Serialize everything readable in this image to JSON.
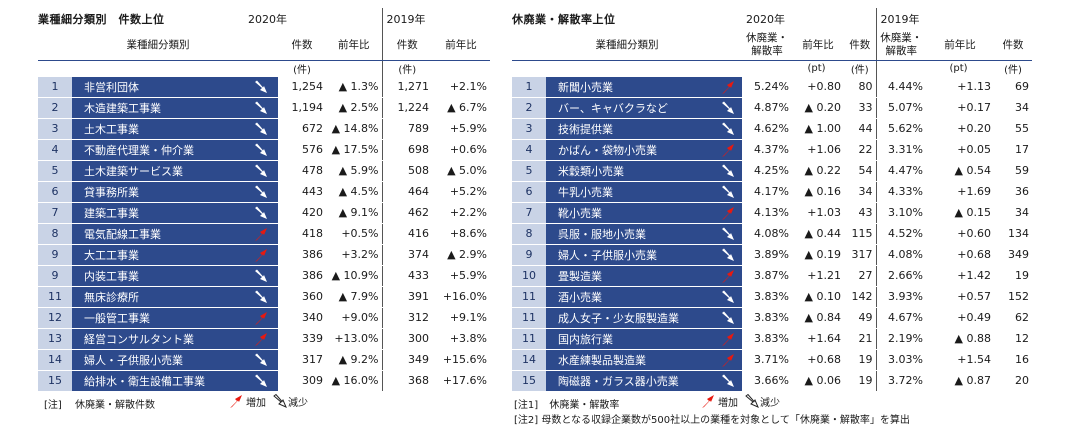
{
  "left": {
    "title": "業種細分類別　件数上位",
    "year_a": "2020年",
    "year_b": "2019年",
    "col_category": "業種細分類別",
    "col_count": "件数",
    "col_yoy": "前年比",
    "unit": "(件)",
    "rows": [
      {
        "rank": "1",
        "name": "非営利団体",
        "dir": "down",
        "c20": "1,254",
        "y20": "▲ 1.3%",
        "c19": "1,271",
        "y19": "+2.1%"
      },
      {
        "rank": "2",
        "name": "木造建築工事業",
        "dir": "down",
        "c20": "1,194",
        "y20": "▲ 2.5%",
        "c19": "1,224",
        "y19": "▲ 6.7%"
      },
      {
        "rank": "3",
        "name": "土木工事業",
        "dir": "down",
        "c20": "672",
        "y20": "▲ 14.8%",
        "c19": "789",
        "y19": "+5.9%"
      },
      {
        "rank": "4",
        "name": "不動産代理業・仲介業",
        "dir": "down",
        "c20": "576",
        "y20": "▲ 17.5%",
        "c19": "698",
        "y19": "+0.6%"
      },
      {
        "rank": "5",
        "name": "土木建築サービス業",
        "dir": "down",
        "c20": "478",
        "y20": "▲ 5.9%",
        "c19": "508",
        "y19": "▲ 5.0%"
      },
      {
        "rank": "6",
        "name": "貸事務所業",
        "dir": "down",
        "c20": "443",
        "y20": "▲ 4.5%",
        "c19": "464",
        "y19": "+5.2%"
      },
      {
        "rank": "7",
        "name": "建築工事業",
        "dir": "down",
        "c20": "420",
        "y20": "▲ 9.1%",
        "c19": "462",
        "y19": "+2.2%"
      },
      {
        "rank": "8",
        "name": "電気配線工事業",
        "dir": "up",
        "c20": "418",
        "y20": "+0.5%",
        "c19": "416",
        "y19": "+8.6%"
      },
      {
        "rank": "9",
        "name": "大工工事業",
        "dir": "up",
        "c20": "386",
        "y20": "+3.2%",
        "c19": "374",
        "y19": "▲ 2.9%"
      },
      {
        "rank": "9",
        "name": "内装工事業",
        "dir": "down",
        "c20": "386",
        "y20": "▲ 10.9%",
        "c19": "433",
        "y19": "+5.9%"
      },
      {
        "rank": "11",
        "name": "無床診療所",
        "dir": "down",
        "c20": "360",
        "y20": "▲ 7.9%",
        "c19": "391",
        "y19": "+16.0%"
      },
      {
        "rank": "12",
        "name": "一般管工事業",
        "dir": "up",
        "c20": "340",
        "y20": "+9.0%",
        "c19": "312",
        "y19": "+9.1%"
      },
      {
        "rank": "13",
        "name": "経営コンサルタント業",
        "dir": "up",
        "c20": "339",
        "y20": "+13.0%",
        "c19": "300",
        "y19": "+3.8%"
      },
      {
        "rank": "14",
        "name": "婦人・子供服小売業",
        "dir": "down",
        "c20": "317",
        "y20": "▲ 9.2%",
        "c19": "349",
        "y19": "+15.6%"
      },
      {
        "rank": "15",
        "name": "給排水・衛生設備工事業",
        "dir": "down",
        "c20": "309",
        "y20": "▲ 16.0%",
        "c19": "368",
        "y19": "+17.6%"
      }
    ],
    "note_tag": "[注]",
    "note_text": "休廃業・解散件数",
    "legend_up": "増加",
    "legend_down": "減少"
  },
  "right": {
    "title": "休廃業・解散率上位",
    "year_a": "2020年",
    "year_b": "2019年",
    "col_category": "業種細分類別",
    "col_rate": "休廃業・解散率",
    "col_yoy": "前年比",
    "col_count": "件数",
    "unit_pt": "(pt)",
    "unit_count": "(件)",
    "rows": [
      {
        "rank": "1",
        "name": "新聞小売業",
        "dir": "up",
        "r20": "5.24%",
        "d20": "+0.80",
        "c20": "80",
        "r19": "4.44%",
        "d19": "+1.13",
        "c19": "69"
      },
      {
        "rank": "2",
        "name": "バー、キャバクラなど",
        "dir": "down",
        "r20": "4.87%",
        "d20": "▲ 0.20",
        "c20": "33",
        "r19": "5.07%",
        "d19": "+0.17",
        "c19": "34"
      },
      {
        "rank": "3",
        "name": "技術提供業",
        "dir": "down",
        "r20": "4.62%",
        "d20": "▲ 1.00",
        "c20": "44",
        "r19": "5.62%",
        "d19": "+0.20",
        "c19": "55"
      },
      {
        "rank": "4",
        "name": "かばん・袋物小売業",
        "dir": "up",
        "r20": "4.37%",
        "d20": "+1.06",
        "c20": "22",
        "r19": "3.31%",
        "d19": "+0.05",
        "c19": "17"
      },
      {
        "rank": "5",
        "name": "米穀類小売業",
        "dir": "down",
        "r20": "4.25%",
        "d20": "▲ 0.22",
        "c20": "54",
        "r19": "4.47%",
        "d19": "▲ 0.54",
        "c19": "59"
      },
      {
        "rank": "6",
        "name": "牛乳小売業",
        "dir": "down",
        "r20": "4.17%",
        "d20": "▲ 0.16",
        "c20": "34",
        "r19": "4.33%",
        "d19": "+1.69",
        "c19": "36"
      },
      {
        "rank": "7",
        "name": "靴小売業",
        "dir": "up",
        "r20": "4.13%",
        "d20": "+1.03",
        "c20": "43",
        "r19": "3.10%",
        "d19": "▲ 0.15",
        "c19": "34"
      },
      {
        "rank": "8",
        "name": "呉服・服地小売業",
        "dir": "down",
        "r20": "4.08%",
        "d20": "▲ 0.44",
        "c20": "115",
        "r19": "4.52%",
        "d19": "+0.60",
        "c19": "134"
      },
      {
        "rank": "9",
        "name": "婦人・子供服小売業",
        "dir": "down",
        "r20": "3.89%",
        "d20": "▲ 0.19",
        "c20": "317",
        "r19": "4.08%",
        "d19": "+0.68",
        "c19": "349"
      },
      {
        "rank": "10",
        "name": "畳製造業",
        "dir": "up",
        "r20": "3.87%",
        "d20": "+1.21",
        "c20": "27",
        "r19": "2.66%",
        "d19": "+1.42",
        "c19": "19"
      },
      {
        "rank": "11",
        "name": "酒小売業",
        "dir": "down",
        "r20": "3.83%",
        "d20": "▲ 0.10",
        "c20": "142",
        "r19": "3.93%",
        "d19": "+0.57",
        "c19": "152"
      },
      {
        "rank": "11",
        "name": "成人女子・少女服製造業",
        "dir": "down",
        "r20": "3.83%",
        "d20": "▲ 0.84",
        "c20": "49",
        "r19": "4.67%",
        "d19": "+0.49",
        "c19": "62"
      },
      {
        "rank": "11",
        "name": "国内旅行業",
        "dir": "up",
        "r20": "3.83%",
        "d20": "+1.64",
        "c20": "21",
        "r19": "2.19%",
        "d19": "▲ 0.88",
        "c19": "12"
      },
      {
        "rank": "14",
        "name": "水産練製品製造業",
        "dir": "up",
        "r20": "3.71%",
        "d20": "+0.68",
        "c20": "19",
        "r19": "3.03%",
        "d19": "+1.54",
        "c19": "16"
      },
      {
        "rank": "15",
        "name": "陶磁器・ガラス器小売業",
        "dir": "down",
        "r20": "3.66%",
        "d20": "▲ 0.06",
        "c20": "19",
        "r19": "3.72%",
        "d19": "▲ 0.87",
        "c19": "20"
      }
    ],
    "note1_tag": "[注1]",
    "note1_text": "休廃業・解散率",
    "legend_up": "増加",
    "legend_down": "減少",
    "note2": "[注2]  母数となる収録企業数が500社以上の業種を対象として「休廃業・解散率」を算出"
  },
  "colors": {
    "navy": "#2d4a8c",
    "rank_bg": "#c9d3e6",
    "up": "#e8190f",
    "down": "#ffffff"
  }
}
